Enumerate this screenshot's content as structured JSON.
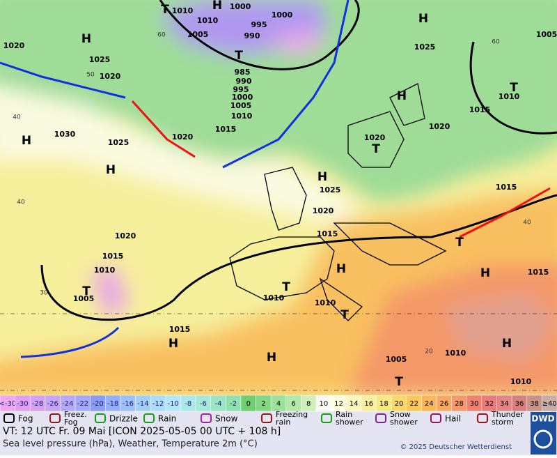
{
  "map": {
    "isobar_labels": [
      1010,
      1000,
      1000,
      1010,
      995,
      1005,
      990,
      1025,
      1020,
      1020,
      1005,
      1025,
      985,
      990,
      995,
      1000,
      1005,
      1010,
      1015,
      1010,
      1015,
      1020,
      1020,
      1030,
      1025,
      1020,
      1025,
      1015,
      1020,
      1015,
      1020,
      1015,
      1010,
      1005,
      1010,
      1010,
      1015,
      1005,
      1010,
      1010,
      1015
    ],
    "pressure_centers": [
      "T",
      "H",
      "H",
      "H",
      "T",
      "H",
      "T",
      "H",
      "H",
      "T",
      "H",
      "H",
      "T",
      "H",
      "T",
      "T",
      "T",
      "H",
      "H",
      "H",
      "T"
    ],
    "temperature_labels": [
      "60",
      "50",
      "40",
      "40",
      "30",
      "20",
      "40",
      "60"
    ]
  },
  "scale": [
    {
      "label": "<-30",
      "color": "#eea8ee"
    },
    {
      "label": "-30",
      "color": "#e0a0f0"
    },
    {
      "label": "-28",
      "color": "#d4a0f0"
    },
    {
      "label": "-26",
      "color": "#c8a4f4"
    },
    {
      "label": "-24",
      "color": "#b8a8f8"
    },
    {
      "label": "-22",
      "color": "#a4a8f8"
    },
    {
      "label": "-20",
      "color": "#8c9cf0"
    },
    {
      "label": "-18",
      "color": "#94b0f8"
    },
    {
      "label": "-16",
      "color": "#9cc0f8"
    },
    {
      "label": "-14",
      "color": "#a4d0f8"
    },
    {
      "label": "-12",
      "color": "#acdcf8"
    },
    {
      "label": "-10",
      "color": "#b4e8f8"
    },
    {
      "label": "-8",
      "color": "#ace8e8"
    },
    {
      "label": "-6",
      "color": "#a4e8d8"
    },
    {
      "label": "-4",
      "color": "#9ce4c4"
    },
    {
      "label": "-2",
      "color": "#90e0b0"
    },
    {
      "label": "0",
      "color": "#70d070"
    },
    {
      "label": "2",
      "color": "#84d884"
    },
    {
      "label": "4",
      "color": "#9ce09c"
    },
    {
      "label": "6",
      "color": "#b4e8a8"
    },
    {
      "label": "8",
      "color": "#ccf0b8"
    },
    {
      "label": "10",
      "color": "#fafaf4"
    },
    {
      "label": "12",
      "color": "#fefee0"
    },
    {
      "label": "14",
      "color": "#fcf8c0"
    },
    {
      "label": "16",
      "color": "#f8f0a0"
    },
    {
      "label": "18",
      "color": "#f8e880"
    },
    {
      "label": "20",
      "color": "#f8d868"
    },
    {
      "label": "22",
      "color": "#f8c858"
    },
    {
      "label": "24",
      "color": "#f8b858"
    },
    {
      "label": "26",
      "color": "#f8a860"
    },
    {
      "label": "28",
      "color": "#f89868"
    },
    {
      "label": "30",
      "color": "#f08070"
    },
    {
      "label": "32",
      "color": "#e87c78"
    },
    {
      "label": "34",
      "color": "#e48484"
    },
    {
      "label": "36",
      "color": "#d88080"
    },
    {
      "label": "38",
      "color": "#c89488"
    },
    {
      "label": "≥40",
      "color": "#c8aca8"
    }
  ],
  "legend": [
    {
      "lines": [
        "Fog"
      ]
    },
    {
      "lines": [
        "Freez.",
        "Fog"
      ]
    },
    {
      "lines": [
        "Drizzle"
      ]
    },
    {
      "lines": [
        "Rain"
      ]
    },
    {
      "lines": [
        "Snow"
      ]
    },
    {
      "lines": [
        "Freezing",
        "rain"
      ]
    },
    {
      "lines": [
        "Rain",
        "shower"
      ]
    },
    {
      "lines": [
        "Snow",
        "shower"
      ]
    },
    {
      "lines": [
        "Hail"
      ]
    },
    {
      "lines": [
        "Thunder",
        "storm"
      ]
    }
  ],
  "footer": {
    "valid_time": "VT: 12 UTC Fr.  09 Mai [ICON 2025-05-05  00 UTC + 108 h]",
    "description": "Sea level pressure (hPa), Weather, Temperature 2m (°C)",
    "copyright": "© 2025 Deutscher Wetterdienst",
    "logo": "DWD"
  }
}
